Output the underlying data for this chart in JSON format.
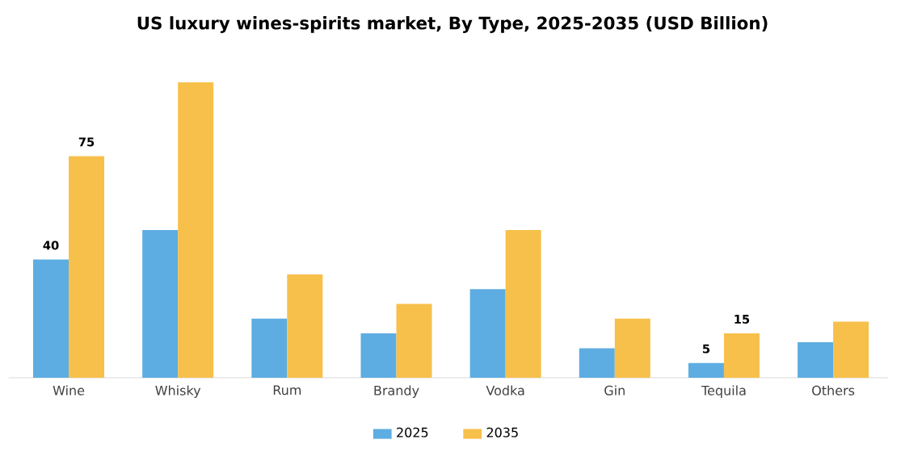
{
  "chart_data": {
    "type": "bar",
    "title": "US luxury wines-spirits market, By Type, 2025-2035 (USD Billion)",
    "categories": [
      "Wine",
      "Whisky",
      "Rum",
      "Brandy",
      "Vodka",
      "Gin",
      "Tequila",
      "Others"
    ],
    "series": [
      {
        "name": "2025",
        "color": "#5dade2",
        "values": [
          40,
          50,
          20,
          15,
          30,
          10,
          5,
          12
        ],
        "value_labels": [
          "40",
          null,
          null,
          null,
          null,
          null,
          "5",
          null
        ]
      },
      {
        "name": "2035",
        "color": "#f7c04a",
        "values": [
          75,
          100,
          35,
          25,
          50,
          20,
          15,
          19
        ],
        "value_labels": [
          "75",
          null,
          null,
          null,
          null,
          null,
          "15",
          null
        ]
      }
    ],
    "legend": "bottom"
  }
}
